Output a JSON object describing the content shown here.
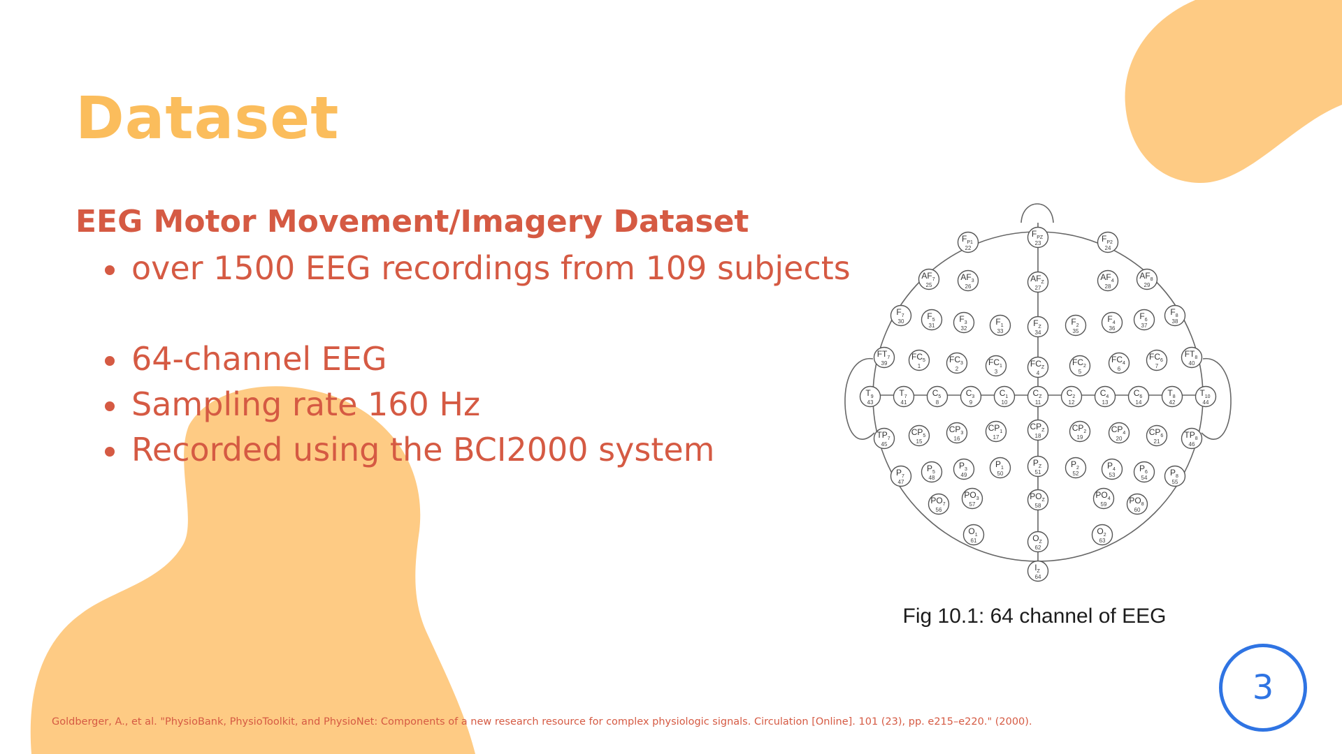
{
  "slide": {
    "title": "Dataset",
    "subtitle": "EEG Motor Movement/Imagery Dataset",
    "bullets": [
      "over 1500 EEG recordings from 109 subjects",
      "64-channel EEG",
      "Sampling rate 160 Hz",
      "Recorded using the BCI2000 system"
    ],
    "figure_caption": "Fig 10.1: 64 channel of EEG",
    "page_number": "3",
    "citation": "Goldberger, A., et al. \"PhysioBank, PhysioToolkit, and PhysioNet: Components of a new research resource for complex physiologic signals. Circulation [Online]. 101 (23), pp. e215–e220.\" (2000)."
  },
  "colors": {
    "title": "#fbbd5c",
    "text": "#d55a43",
    "blob": "#fecb84",
    "page_number": "#2f74e3"
  },
  "electrodes": [
    {
      "n": 22,
      "b": "F",
      "s": "P1"
    },
    {
      "n": 23,
      "b": "F",
      "s": "PZ"
    },
    {
      "n": 24,
      "b": "F",
      "s": "P2"
    },
    {
      "n": 25,
      "b": "AF",
      "s": "7"
    },
    {
      "n": 26,
      "b": "AF",
      "s": "3"
    },
    {
      "n": 27,
      "b": "AF",
      "s": "Z"
    },
    {
      "n": 28,
      "b": "AF",
      "s": "4"
    },
    {
      "n": 29,
      "b": "AF",
      "s": "8"
    },
    {
      "n": 30,
      "b": "F",
      "s": "7"
    },
    {
      "n": 31,
      "b": "F",
      "s": "5"
    },
    {
      "n": 32,
      "b": "F",
      "s": "3"
    },
    {
      "n": 33,
      "b": "F",
      "s": "1"
    },
    {
      "n": 34,
      "b": "F",
      "s": "Z"
    },
    {
      "n": 35,
      "b": "F",
      "s": "2"
    },
    {
      "n": 36,
      "b": "F",
      "s": "4"
    },
    {
      "n": 37,
      "b": "F",
      "s": "6"
    },
    {
      "n": 38,
      "b": "F",
      "s": "8"
    },
    {
      "n": 39,
      "b": "FT",
      "s": "7"
    },
    {
      "n": 1,
      "b": "FC",
      "s": "5"
    },
    {
      "n": 2,
      "b": "FC",
      "s": "3"
    },
    {
      "n": 3,
      "b": "FC",
      "s": "1"
    },
    {
      "n": 4,
      "b": "FC",
      "s": "Z"
    },
    {
      "n": 5,
      "b": "FC",
      "s": "2"
    },
    {
      "n": 6,
      "b": "FC",
      "s": "4"
    },
    {
      "n": 7,
      "b": "FC",
      "s": "6"
    },
    {
      "n": 40,
      "b": "FT",
      "s": "8"
    },
    {
      "n": 43,
      "b": "T",
      "s": "9"
    },
    {
      "n": 41,
      "b": "T",
      "s": "7"
    },
    {
      "n": 8,
      "b": "C",
      "s": "5"
    },
    {
      "n": 9,
      "b": "C",
      "s": "3"
    },
    {
      "n": 10,
      "b": "C",
      "s": "1"
    },
    {
      "n": 11,
      "b": "C",
      "s": "Z"
    },
    {
      "n": 12,
      "b": "C",
      "s": "2"
    },
    {
      "n": 13,
      "b": "C",
      "s": "4"
    },
    {
      "n": 14,
      "b": "C",
      "s": "6"
    },
    {
      "n": 42,
      "b": "T",
      "s": "8"
    },
    {
      "n": 44,
      "b": "T",
      "s": "10"
    },
    {
      "n": 45,
      "b": "TP",
      "s": "7"
    },
    {
      "n": 15,
      "b": "CP",
      "s": "5"
    },
    {
      "n": 16,
      "b": "CP",
      "s": "3"
    },
    {
      "n": 17,
      "b": "CP",
      "s": "1"
    },
    {
      "n": 18,
      "b": "CP",
      "s": "Z"
    },
    {
      "n": 19,
      "b": "CP",
      "s": "2"
    },
    {
      "n": 20,
      "b": "CP",
      "s": "4"
    },
    {
      "n": 21,
      "b": "CP",
      "s": "6"
    },
    {
      "n": 46,
      "b": "TP",
      "s": "8"
    },
    {
      "n": 47,
      "b": "P",
      "s": "7"
    },
    {
      "n": 48,
      "b": "P",
      "s": "5"
    },
    {
      "n": 49,
      "b": "P",
      "s": "3"
    },
    {
      "n": 50,
      "b": "P",
      "s": "1"
    },
    {
      "n": 51,
      "b": "P",
      "s": "Z"
    },
    {
      "n": 52,
      "b": "P",
      "s": "2"
    },
    {
      "n": 53,
      "b": "P",
      "s": "4"
    },
    {
      "n": 54,
      "b": "P",
      "s": "6"
    },
    {
      "n": 55,
      "b": "P",
      "s": "8"
    },
    {
      "n": 56,
      "b": "PO",
      "s": "7"
    },
    {
      "n": 57,
      "b": "PO",
      "s": "3"
    },
    {
      "n": 58,
      "b": "PO",
      "s": "Z"
    },
    {
      "n": 59,
      "b": "PO",
      "s": "4"
    },
    {
      "n": 60,
      "b": "PO",
      "s": "8"
    },
    {
      "n": 61,
      "b": "O",
      "s": "1"
    },
    {
      "n": 62,
      "b": "O",
      "s": "Z"
    },
    {
      "n": 63,
      "b": "O",
      "s": "2"
    },
    {
      "n": 64,
      "b": "I",
      "s": "Z"
    }
  ]
}
